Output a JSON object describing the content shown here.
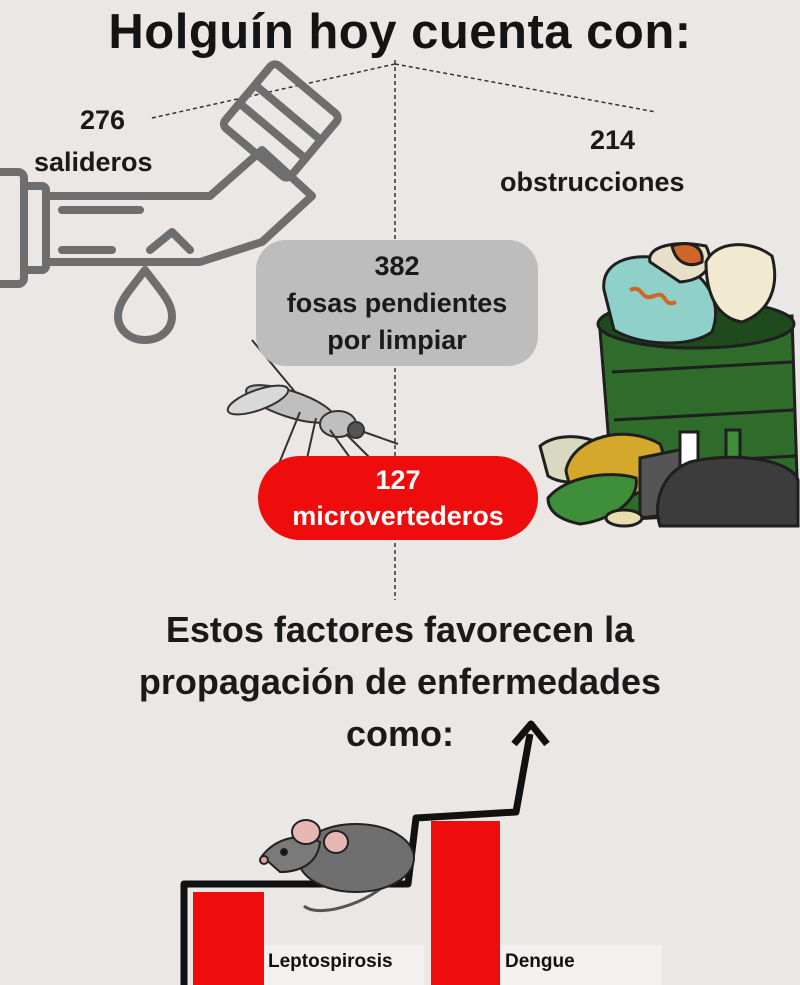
{
  "title": "Holguín hoy cuenta con:",
  "stats": {
    "salideros": {
      "value": "276",
      "label": "salideros"
    },
    "obstrucciones": {
      "value": "214",
      "label": "obstrucciones"
    },
    "fosas": {
      "value": "382",
      "line1": "fosas pendientes",
      "line2": "por limpiar"
    },
    "microvertederos": {
      "value": "127",
      "label": "microvertederos"
    }
  },
  "subtitle": {
    "line1": "Estos factores favorecen la",
    "line2": "propagación de enfermedades",
    "line3": "como:"
  },
  "diseases": [
    "Leptospirosis",
    "Dengue"
  ],
  "colors": {
    "red": "#ef0c0c",
    "grey_pill": "#bdbdbd",
    "background": "#ebe7e4",
    "trash_bin": "#2f6b2b",
    "icon_grey": "#6e6e6e"
  },
  "icons": [
    "pipe-leak-icon",
    "mosquito-icon",
    "trash-bin-icon",
    "rat-icon",
    "up-arrow-icon"
  ]
}
